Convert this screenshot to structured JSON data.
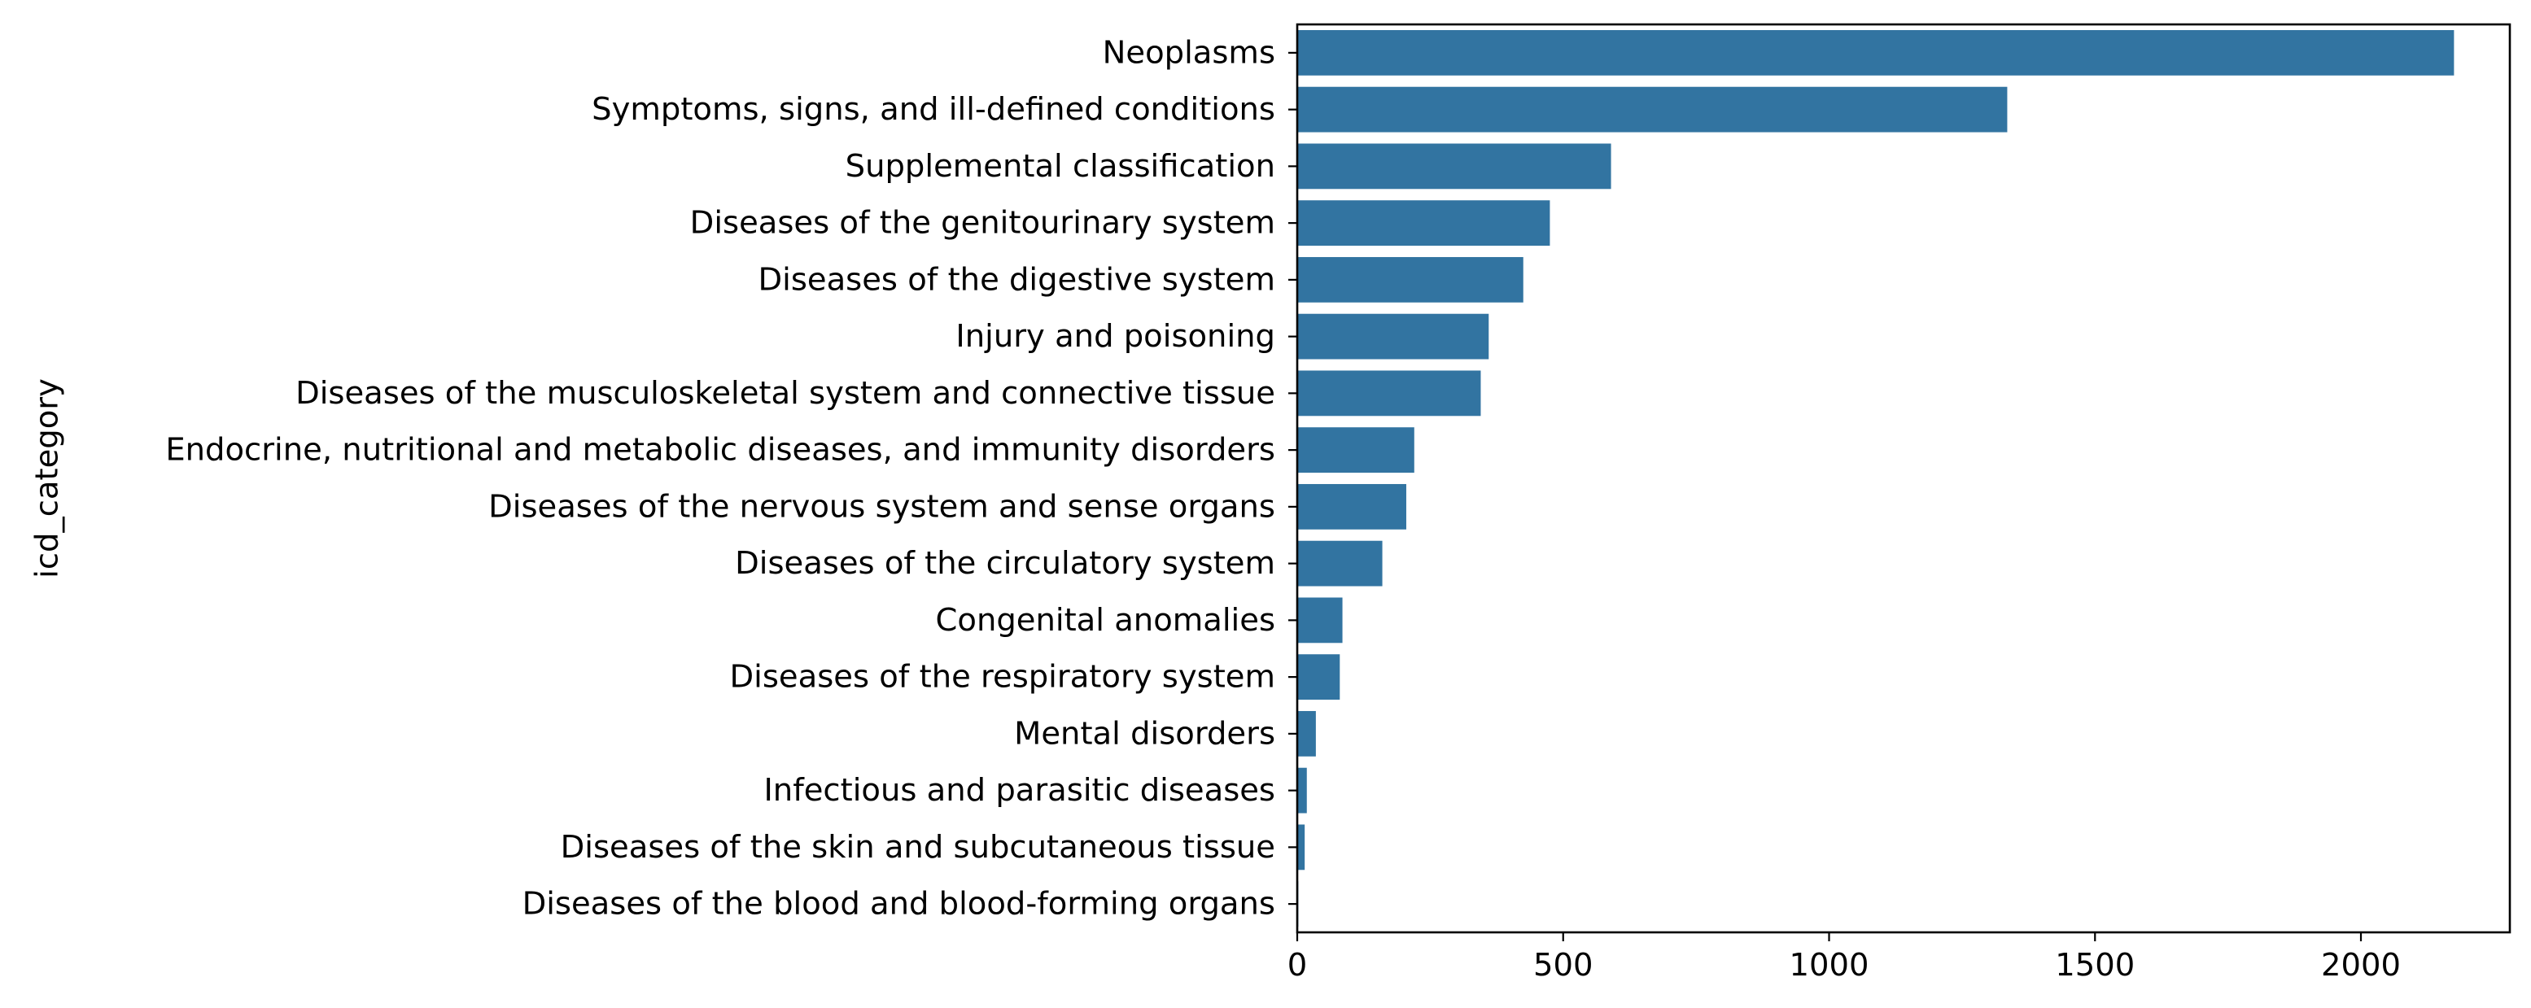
{
  "chart_data": {
    "type": "bar",
    "orientation": "horizontal",
    "title": "",
    "xlabel": "",
    "ylabel": "icd_category",
    "xlim": [
      0,
      2280
    ],
    "xticks": [
      0,
      500,
      1000,
      1500,
      2000
    ],
    "grid": false,
    "legend": "none",
    "bar_color": "#3274a1",
    "categories": [
      "Neoplasms",
      "Symptoms, signs, and ill-defined conditions",
      "Supplemental classification",
      "Diseases of the genitourinary system",
      "Diseases of the digestive system",
      "Injury and poisoning",
      "Diseases of the musculoskeletal system and connective tissue",
      "Endocrine, nutritional and metabolic diseases, and immunity disorders",
      "Diseases of the nervous system and sense organs",
      "Diseases of the circulatory system",
      "Congenital anomalies",
      "Diseases of the respiratory system",
      "Mental disorders",
      "Infectious and parasitic diseases",
      "Diseases of the skin and subcutaneous tissue",
      "Diseases of the blood and blood-forming organs"
    ],
    "values": [
      2175,
      1335,
      590,
      475,
      425,
      360,
      345,
      220,
      205,
      160,
      85,
      80,
      35,
      18,
      14,
      2
    ]
  }
}
